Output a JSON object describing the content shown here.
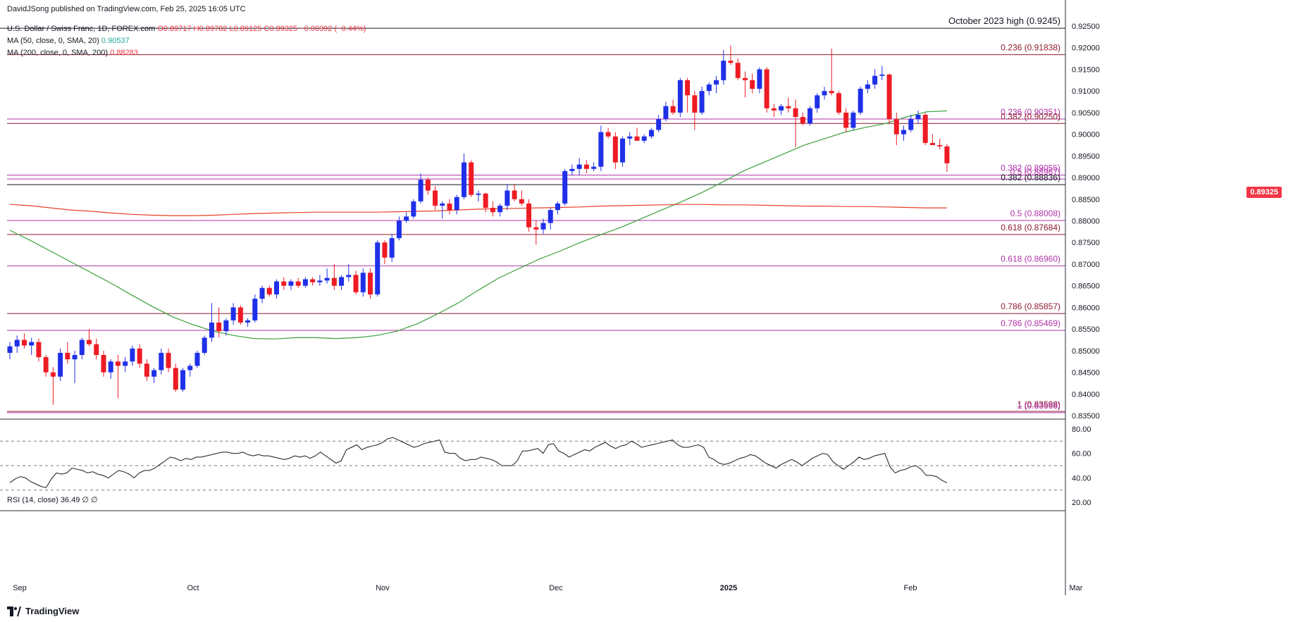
{
  "header": {
    "publisher": "DavidJSong published on TradingView.com, Feb 25, 2025 16:05 UTC",
    "symbol": "U.S. Dollar / Swiss Franc, 1D, FOREX.com",
    "open": "O0.89717",
    "high": "H0.89782",
    "low": "L0.89125",
    "close": "C0.89325",
    "change": "−0.00392 (−0.44%)",
    "ma50_label": "MA (50, close, 0, SMA, 20)",
    "ma50_value": "0.90537",
    "ma200_label": "MA (200, close, 0, SMA, 200)",
    "ma200_value": "0.88283"
  },
  "rsi": {
    "label": "RSI (14, close)",
    "value": "36.49",
    "extra": "∅ ∅"
  },
  "brand": "TradingView",
  "price_tag": "0.89325",
  "colors": {
    "up": "#1f30e8",
    "down": "#ee1b24",
    "ma50": "#3ca03c",
    "ma200": "#e8402a",
    "fib_red": "#8e1b2f",
    "fib_magenta": "#b132a8",
    "grid_text": "#131722"
  },
  "chart_data": {
    "type": "candlestick",
    "title": "U.S. Dollar / Swiss Franc, 1D, FOREX.com",
    "ylim": [
      0.835,
      0.925
    ],
    "y_ticks": [
      "0.92500",
      "0.92000",
      "0.91500",
      "0.91000",
      "0.90500",
      "0.90000",
      "0.89500",
      "0.89000",
      "0.88500",
      "0.88000",
      "0.87500",
      "0.87000",
      "0.86500",
      "0.86000",
      "0.85500",
      "0.85000",
      "0.84500",
      "0.84000",
      "0.83500"
    ],
    "x_ticks": [
      "Sep",
      "Oct",
      "Nov",
      "Dec",
      "2025",
      "Feb",
      "Mar"
    ],
    "annotation_top": "October 2023 high (0.9245)",
    "levels": [
      {
        "label": "0.236 (0.91838)",
        "value": 0.91838,
        "color": "red"
      },
      {
        "label": "0.236 (0.90351)",
        "value": 0.90351,
        "color": "magenta"
      },
      {
        "label": "0.382 (0.90250)",
        "value": 0.9025,
        "color": "red"
      },
      {
        "label": "0.382 (0.89055)",
        "value": 0.89055,
        "color": "magenta"
      },
      {
        "label": "0.5 (0.88967)",
        "value": 0.88967,
        "color": "magenta"
      },
      {
        "label": "0.382 (0.88836)",
        "value": 0.88836,
        "color": "black"
      },
      {
        "label": "0.5 (0.88008)",
        "value": 0.88008,
        "color": "magenta"
      },
      {
        "label": "0.618 (0.87684)",
        "value": 0.87684,
        "color": "red"
      },
      {
        "label": "0.618 (0.86960)",
        "value": 0.8696,
        "color": "magenta"
      },
      {
        "label": "0.786 (0.85857)",
        "value": 0.85857,
        "color": "red"
      },
      {
        "label": "0.786 (0.85469)",
        "value": 0.85469,
        "color": "magenta"
      },
      {
        "label": "1 (0.83598)",
        "value": 0.83598,
        "color": "red"
      },
      {
        "label": "1 (0.83568)",
        "value": 0.83568,
        "color": "magenta"
      }
    ],
    "candles": [
      [
        0.8495,
        0.852,
        0.848,
        0.851
      ],
      [
        0.851,
        0.8535,
        0.8495,
        0.8525
      ],
      [
        0.8525,
        0.854,
        0.8505,
        0.8512
      ],
      [
        0.8512,
        0.853,
        0.849,
        0.852
      ],
      [
        0.852,
        0.8528,
        0.8475,
        0.8485
      ],
      [
        0.8485,
        0.849,
        0.844,
        0.845
      ],
      [
        0.845,
        0.8462,
        0.8375,
        0.844
      ],
      [
        0.844,
        0.8505,
        0.843,
        0.8495
      ],
      [
        0.8495,
        0.852,
        0.847,
        0.848
      ],
      [
        0.848,
        0.85,
        0.8425,
        0.849
      ],
      [
        0.849,
        0.853,
        0.848,
        0.8525
      ],
      [
        0.8525,
        0.855,
        0.851,
        0.8515
      ],
      [
        0.8515,
        0.8528,
        0.848,
        0.849
      ],
      [
        0.849,
        0.85,
        0.844,
        0.845
      ],
      [
        0.845,
        0.848,
        0.8435,
        0.8475
      ],
      [
        0.8475,
        0.849,
        0.839,
        0.8465
      ],
      [
        0.8465,
        0.8485,
        0.845,
        0.8475
      ],
      [
        0.8475,
        0.8512,
        0.8465,
        0.8505
      ],
      [
        0.8505,
        0.8515,
        0.846,
        0.847
      ],
      [
        0.847,
        0.848,
        0.843,
        0.844
      ],
      [
        0.844,
        0.846,
        0.8425,
        0.8455
      ],
      [
        0.8455,
        0.8505,
        0.8445,
        0.8495
      ],
      [
        0.8495,
        0.8505,
        0.845,
        0.846
      ],
      [
        0.846,
        0.847,
        0.8405,
        0.841
      ],
      [
        0.841,
        0.846,
        0.8405,
        0.8455
      ],
      [
        0.8455,
        0.847,
        0.844,
        0.8465
      ],
      [
        0.8465,
        0.85,
        0.846,
        0.8495
      ],
      [
        0.8495,
        0.8535,
        0.849,
        0.853
      ],
      [
        0.853,
        0.861,
        0.852,
        0.8565
      ],
      [
        0.8565,
        0.86,
        0.853,
        0.8545
      ],
      [
        0.8545,
        0.8575,
        0.8535,
        0.857
      ],
      [
        0.857,
        0.861,
        0.856,
        0.86
      ],
      [
        0.86,
        0.8605,
        0.856,
        0.8565
      ],
      [
        0.8565,
        0.8575,
        0.8555,
        0.857
      ],
      [
        0.857,
        0.863,
        0.8565,
        0.862
      ],
      [
        0.862,
        0.865,
        0.861,
        0.8645
      ],
      [
        0.8645,
        0.865,
        0.8625,
        0.863
      ],
      [
        0.863,
        0.8665,
        0.862,
        0.866
      ],
      [
        0.866,
        0.867,
        0.864,
        0.865
      ],
      [
        0.865,
        0.8665,
        0.864,
        0.866
      ],
      [
        0.866,
        0.8668,
        0.8645,
        0.865
      ],
      [
        0.865,
        0.867,
        0.8645,
        0.8665
      ],
      [
        0.8665,
        0.867,
        0.865,
        0.8658
      ],
      [
        0.8658,
        0.8675,
        0.865,
        0.8662
      ],
      [
        0.8662,
        0.869,
        0.8655,
        0.8668
      ],
      [
        0.8668,
        0.87,
        0.864,
        0.865
      ],
      [
        0.865,
        0.8675,
        0.864,
        0.867
      ],
      [
        0.867,
        0.87,
        0.866,
        0.8675
      ],
      [
        0.8675,
        0.8685,
        0.863,
        0.8635
      ],
      [
        0.8635,
        0.869,
        0.8625,
        0.868
      ],
      [
        0.868,
        0.869,
        0.862,
        0.863
      ],
      [
        0.863,
        0.8755,
        0.8625,
        0.875
      ],
      [
        0.875,
        0.8755,
        0.87,
        0.8715
      ],
      [
        0.8715,
        0.877,
        0.8705,
        0.876
      ],
      [
        0.876,
        0.881,
        0.8755,
        0.88
      ],
      [
        0.88,
        0.882,
        0.8795,
        0.881
      ],
      [
        0.881,
        0.885,
        0.8805,
        0.8845
      ],
      [
        0.8845,
        0.891,
        0.884,
        0.8895
      ],
      [
        0.8895,
        0.89,
        0.886,
        0.887
      ],
      [
        0.887,
        0.888,
        0.8825,
        0.8835
      ],
      [
        0.8835,
        0.8845,
        0.8805,
        0.884
      ],
      [
        0.884,
        0.885,
        0.8815,
        0.8825
      ],
      [
        0.8825,
        0.886,
        0.8815,
        0.8855
      ],
      [
        0.8855,
        0.8955,
        0.885,
        0.8935
      ],
      [
        0.8935,
        0.894,
        0.8855,
        0.886
      ],
      [
        0.886,
        0.887,
        0.8845,
        0.8863
      ],
      [
        0.8863,
        0.8865,
        0.882,
        0.883
      ],
      [
        0.883,
        0.8845,
        0.881,
        0.882
      ],
      [
        0.882,
        0.884,
        0.881,
        0.8835
      ],
      [
        0.8835,
        0.8885,
        0.8825,
        0.887
      ],
      [
        0.887,
        0.8885,
        0.8845,
        0.885
      ],
      [
        0.885,
        0.887,
        0.8835,
        0.884
      ],
      [
        0.884,
        0.885,
        0.8775,
        0.8785
      ],
      [
        0.8785,
        0.88,
        0.8745,
        0.878
      ],
      [
        0.878,
        0.8805,
        0.877,
        0.8795
      ],
      [
        0.8795,
        0.883,
        0.878,
        0.8825
      ],
      [
        0.8825,
        0.8845,
        0.8815,
        0.884
      ],
      [
        0.884,
        0.892,
        0.8835,
        0.8915
      ],
      [
        0.8915,
        0.893,
        0.8905,
        0.892
      ],
      [
        0.892,
        0.8945,
        0.8905,
        0.893
      ],
      [
        0.893,
        0.894,
        0.891,
        0.892
      ],
      [
        0.892,
        0.8935,
        0.8915,
        0.8925
      ],
      [
        0.8925,
        0.902,
        0.8915,
        0.9005
      ],
      [
        0.9005,
        0.9015,
        0.899,
        0.8995
      ],
      [
        0.8995,
        0.9005,
        0.892,
        0.8935
      ],
      [
        0.8935,
        0.8995,
        0.8925,
        0.899
      ],
      [
        0.899,
        0.9005,
        0.8975,
        0.8995
      ],
      [
        0.8995,
        0.9015,
        0.8985,
        0.8985
      ],
      [
        0.8985,
        0.9,
        0.898,
        0.8995
      ],
      [
        0.8995,
        0.9015,
        0.899,
        0.901
      ],
      [
        0.901,
        0.9045,
        0.9005,
        0.9035
      ],
      [
        0.9035,
        0.9075,
        0.903,
        0.9065
      ],
      [
        0.9065,
        0.908,
        0.9045,
        0.905
      ],
      [
        0.905,
        0.913,
        0.904,
        0.9125
      ],
      [
        0.9125,
        0.913,
        0.905,
        0.909
      ],
      [
        0.909,
        0.91,
        0.901,
        0.905
      ],
      [
        0.905,
        0.911,
        0.9045,
        0.91
      ],
      [
        0.91,
        0.912,
        0.909,
        0.9115
      ],
      [
        0.9115,
        0.9135,
        0.9095,
        0.9125
      ],
      [
        0.9125,
        0.9195,
        0.9115,
        0.917
      ],
      [
        0.917,
        0.9205,
        0.916,
        0.9165
      ],
      [
        0.9165,
        0.9175,
        0.9125,
        0.913
      ],
      [
        0.913,
        0.9145,
        0.9085,
        0.9125
      ],
      [
        0.9125,
        0.914,
        0.9095,
        0.9105
      ],
      [
        0.9105,
        0.9155,
        0.9095,
        0.915
      ],
      [
        0.915,
        0.9155,
        0.905,
        0.906
      ],
      [
        0.906,
        0.907,
        0.904,
        0.9055
      ],
      [
        0.9055,
        0.907,
        0.9045,
        0.9065
      ],
      [
        0.9065,
        0.9085,
        0.905,
        0.906
      ],
      [
        0.906,
        0.908,
        0.897,
        0.904
      ],
      [
        0.904,
        0.905,
        0.902,
        0.9025
      ],
      [
        0.9025,
        0.9065,
        0.902,
        0.906
      ],
      [
        0.906,
        0.9095,
        0.905,
        0.909
      ],
      [
        0.909,
        0.911,
        0.908,
        0.91
      ],
      [
        0.91,
        0.9198,
        0.909,
        0.9095
      ],
      [
        0.9095,
        0.91,
        0.9045,
        0.905
      ],
      [
        0.905,
        0.906,
        0.9005,
        0.9015
      ],
      [
        0.9015,
        0.9055,
        0.901,
        0.905
      ],
      [
        0.905,
        0.911,
        0.9045,
        0.9105
      ],
      [
        0.9105,
        0.9125,
        0.9095,
        0.9115
      ],
      [
        0.9115,
        0.915,
        0.9105,
        0.9135
      ],
      [
        0.9135,
        0.9158,
        0.9125,
        0.9138
      ],
      [
        0.9138,
        0.914,
        0.9025,
        0.9035
      ],
      [
        0.9035,
        0.905,
        0.8975,
        0.9
      ],
      [
        0.9,
        0.902,
        0.8985,
        0.901
      ],
      [
        0.901,
        0.9045,
        0.9005,
        0.9035
      ],
      [
        0.9035,
        0.9055,
        0.9025,
        0.9045
      ],
      [
        0.9045,
        0.905,
        0.8975,
        0.898
      ],
      [
        0.898,
        0.9,
        0.8975,
        0.8975
      ],
      [
        0.8975,
        0.899,
        0.8965,
        0.8972
      ],
      [
        0.8972,
        0.8978,
        0.8913,
        0.8933
      ]
    ],
    "ma50": [
      0.8778,
      0.8755,
      0.873,
      0.8705,
      0.868,
      0.8655,
      0.8628,
      0.8602,
      0.8578,
      0.856,
      0.8545,
      0.8535,
      0.8528,
      0.8527,
      0.853,
      0.853,
      0.8528,
      0.853,
      0.8535,
      0.8545,
      0.8562,
      0.8585,
      0.861,
      0.864,
      0.8668,
      0.869,
      0.8712,
      0.873,
      0.875,
      0.8768,
      0.8785,
      0.8805,
      0.8825,
      0.8845,
      0.8866,
      0.889,
      0.8915,
      0.8935,
      0.8955,
      0.8975,
      0.899,
      0.9005,
      0.9016,
      0.9025,
      0.904,
      0.9052,
      0.9054
    ],
    "ma200": [
      0.8838,
      0.8835,
      0.883,
      0.8825,
      0.8822,
      0.8818,
      0.8815,
      0.8813,
      0.8812,
      0.8812,
      0.8813,
      0.8815,
      0.8817,
      0.8818,
      0.8819,
      0.882,
      0.882,
      0.882,
      0.882,
      0.8821,
      0.8822,
      0.8823,
      0.8825,
      0.8827,
      0.8828,
      0.8829,
      0.883,
      0.8831,
      0.8832,
      0.8834,
      0.8835,
      0.8836,
      0.8837,
      0.8838,
      0.8838,
      0.8837,
      0.8837,
      0.8836,
      0.8835,
      0.8834,
      0.8834,
      0.8833,
      0.8833,
      0.8832,
      0.8831,
      0.883,
      0.883
    ],
    "rsi_ylim": [
      16,
      84
    ],
    "rsi_ticks": [
      "80.00",
      "60.00",
      "40.00",
      "20.00"
    ],
    "rsi_levels": [
      70,
      50,
      30
    ],
    "rsi": [
      36,
      39,
      41,
      40,
      37,
      35,
      33,
      32,
      39,
      44,
      43,
      44,
      48,
      47,
      46,
      44,
      45,
      43,
      42,
      40,
      43,
      46,
      45,
      43,
      40,
      44,
      46,
      46,
      48,
      51,
      54,
      57,
      56,
      54,
      56,
      55,
      57,
      57,
      58,
      59,
      60,
      61,
      61,
      60,
      60,
      61,
      59,
      58,
      59,
      58,
      58,
      57,
      56,
      55,
      56,
      58,
      57,
      58,
      56,
      58,
      61,
      58,
      55,
      52,
      54,
      63,
      65,
      67,
      63,
      65,
      66,
      67,
      69,
      72,
      73,
      71,
      69,
      67,
      65,
      66,
      68,
      69,
      70,
      71,
      61,
      60,
      60,
      56,
      54,
      55,
      55,
      57,
      56,
      55,
      53,
      50,
      50,
      50,
      54,
      62,
      62,
      63,
      64,
      60,
      67,
      68,
      62,
      60,
      57,
      59,
      61,
      63,
      62,
      65,
      67,
      69,
      66,
      64,
      66,
      67,
      70,
      68,
      65,
      66,
      67,
      68,
      69,
      70,
      71,
      67,
      65,
      65,
      66,
      67,
      65,
      57,
      55,
      52,
      51,
      52,
      54,
      56,
      57,
      59,
      58,
      55,
      52,
      50,
      48,
      51,
      53,
      55,
      53,
      50,
      53,
      56,
      58,
      60,
      59,
      53,
      50,
      47,
      50,
      53,
      57,
      55,
      56,
      58,
      59,
      60,
      49,
      44,
      46,
      47,
      49,
      50,
      47,
      42,
      42,
      41,
      38,
      36
    ]
  }
}
